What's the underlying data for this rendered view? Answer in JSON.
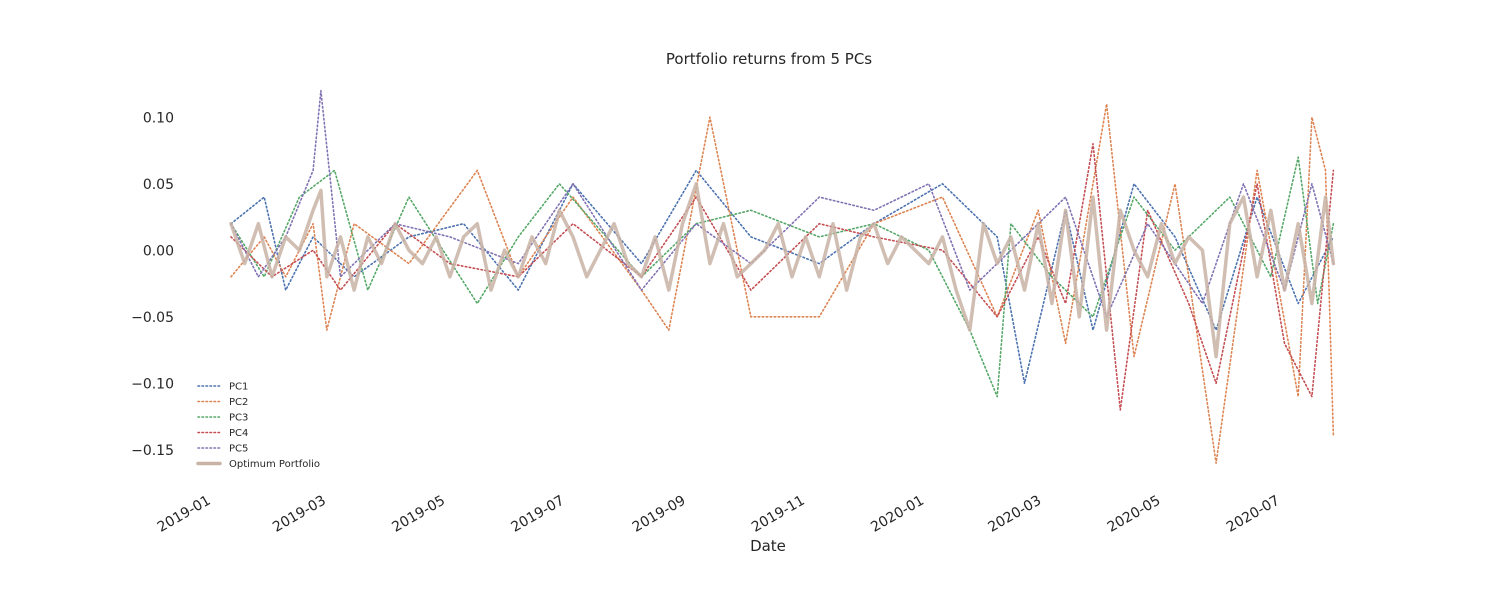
{
  "chart_data": {
    "type": "line",
    "title": "Portfolio returns from 5 PCs",
    "xlabel": "Date",
    "ylabel": "",
    "xlim": [
      "2018-12-20",
      "2020-08-05"
    ],
    "ylim": [
      -0.175,
      0.125
    ],
    "x_ticks": [
      "2019-01-01",
      "2019-03-01",
      "2019-05-01",
      "2019-07-01",
      "2019-09-01",
      "2019-11-01",
      "2020-01-01",
      "2020-03-01",
      "2020-05-01",
      "2020-07-01"
    ],
    "x_tick_labels": [
      "2019-01",
      "2019-03",
      "2019-05",
      "2019-07",
      "2019-09",
      "2019-11",
      "2020-01",
      "2020-03",
      "2020-05",
      "2020-07"
    ],
    "y_ticks": [
      0.1,
      0.05,
      0.0,
      -0.05,
      -0.1,
      -0.15
    ],
    "y_tick_labels": [
      "0.10",
      "0.05",
      "0.00",
      "−0.05",
      "−0.10",
      "−0.15"
    ],
    "grid": false,
    "legend_position": "bottom-left",
    "series": [
      {
        "name": "PC1",
        "color": "#4c72b0",
        "style": "dotted",
        "x": [
          "2019-01-11",
          "2019-01-28",
          "2019-02-08",
          "2019-02-22",
          "2019-03-15",
          "2019-04-12",
          "2019-05-10",
          "2019-06-07",
          "2019-07-05",
          "2019-08-09",
          "2019-09-06",
          "2019-10-04",
          "2019-11-08",
          "2019-12-06",
          "2020-01-10",
          "2020-02-07",
          "2020-02-21",
          "2020-03-13",
          "2020-03-27",
          "2020-04-17",
          "2020-05-08",
          "2020-05-29",
          "2020-06-19",
          "2020-07-10",
          "2020-07-28"
        ],
        "y": [
          0.02,
          0.04,
          -0.03,
          0.01,
          -0.02,
          0.01,
          0.02,
          -0.03,
          0.05,
          -0.01,
          0.06,
          0.01,
          -0.01,
          0.02,
          0.05,
          0.01,
          -0.1,
          0.03,
          -0.06,
          0.05,
          0.01,
          -0.06,
          0.04,
          -0.04,
          0.01
        ]
      },
      {
        "name": "PC2",
        "color": "#dd8452",
        "style": "dotted",
        "x": [
          "2019-01-11",
          "2019-01-28",
          "2019-02-08",
          "2019-02-22",
          "2019-03-01",
          "2019-03-15",
          "2019-04-12",
          "2019-05-17",
          "2019-06-07",
          "2019-07-05",
          "2019-08-09",
          "2019-08-23",
          "2019-09-13",
          "2019-10-04",
          "2019-11-08",
          "2019-12-06",
          "2020-01-10",
          "2020-02-07",
          "2020-02-28",
          "2020-03-13",
          "2020-03-27",
          "2020-04-03",
          "2020-04-17",
          "2020-05-08",
          "2020-05-29",
          "2020-06-19",
          "2020-07-10",
          "2020-07-17",
          "2020-07-24",
          "2020-07-28"
        ],
        "y": [
          -0.02,
          0.01,
          -0.02,
          0.02,
          -0.06,
          0.02,
          -0.01,
          0.06,
          -0.02,
          0.04,
          -0.03,
          -0.06,
          0.1,
          -0.05,
          -0.05,
          0.02,
          0.04,
          -0.05,
          0.03,
          -0.07,
          0.05,
          0.11,
          -0.08,
          0.05,
          -0.16,
          0.06,
          -0.11,
          0.1,
          0.06,
          -0.14
        ]
      },
      {
        "name": "PC3",
        "color": "#55a868",
        "style": "dotted",
        "x": [
          "2019-01-11",
          "2019-01-28",
          "2019-02-15",
          "2019-03-05",
          "2019-03-22",
          "2019-04-12",
          "2019-05-17",
          "2019-06-07",
          "2019-06-28",
          "2019-08-09",
          "2019-09-06",
          "2019-10-04",
          "2019-11-08",
          "2019-12-06",
          "2020-01-03",
          "2020-01-24",
          "2020-02-07",
          "2020-02-14",
          "2020-03-06",
          "2020-03-27",
          "2020-04-17",
          "2020-05-08",
          "2020-06-05",
          "2020-06-26",
          "2020-07-10",
          "2020-07-20",
          "2020-07-28"
        ],
        "y": [
          0.02,
          -0.02,
          0.04,
          0.06,
          -0.03,
          0.04,
          -0.04,
          0.01,
          0.05,
          -0.02,
          0.02,
          0.03,
          0.01,
          0.02,
          0.0,
          -0.06,
          -0.11,
          0.02,
          -0.02,
          -0.05,
          0.04,
          0.0,
          0.04,
          -0.02,
          0.07,
          -0.04,
          0.02
        ]
      },
      {
        "name": "PC4",
        "color": "#c44e52",
        "style": "dotted",
        "x": [
          "2019-01-11",
          "2019-02-01",
          "2019-02-22",
          "2019-03-08",
          "2019-04-05",
          "2019-05-03",
          "2019-06-07",
          "2019-07-05",
          "2019-08-09",
          "2019-09-06",
          "2019-10-04",
          "2019-11-08",
          "2019-12-06",
          "2020-01-10",
          "2020-02-07",
          "2020-02-28",
          "2020-03-13",
          "2020-03-27",
          "2020-04-10",
          "2020-04-24",
          "2020-05-15",
          "2020-05-29",
          "2020-06-19",
          "2020-07-03",
          "2020-07-17",
          "2020-07-28"
        ],
        "y": [
          0.01,
          -0.02,
          0.0,
          -0.03,
          0.02,
          -0.01,
          -0.02,
          0.02,
          -0.02,
          0.04,
          -0.03,
          0.02,
          0.01,
          0.0,
          -0.05,
          0.01,
          -0.04,
          0.08,
          -0.12,
          0.03,
          -0.04,
          -0.1,
          0.05,
          -0.07,
          -0.11,
          0.06
        ]
      },
      {
        "name": "PC5",
        "color": "#8172b3",
        "style": "dotted",
        "x": [
          "2019-01-11",
          "2019-01-25",
          "2019-02-08",
          "2019-02-22",
          "2019-02-26",
          "2019-03-08",
          "2019-04-05",
          "2019-05-03",
          "2019-06-07",
          "2019-07-05",
          "2019-08-09",
          "2019-09-06",
          "2019-10-04",
          "2019-11-08",
          "2019-12-06",
          "2020-01-03",
          "2020-01-24",
          "2020-02-14",
          "2020-03-13",
          "2020-04-03",
          "2020-04-24",
          "2020-05-22",
          "2020-06-12",
          "2020-07-03",
          "2020-07-17",
          "2020-07-28"
        ],
        "y": [
          0.02,
          -0.02,
          0.01,
          0.06,
          0.12,
          -0.02,
          0.02,
          0.01,
          -0.01,
          0.05,
          -0.03,
          0.02,
          -0.01,
          0.04,
          0.03,
          0.05,
          -0.03,
          0.0,
          0.04,
          -0.05,
          0.02,
          -0.04,
          0.05,
          -0.03,
          0.05,
          -0.01
        ]
      },
      {
        "name": "Optimum Portfolio",
        "color": "#c9b3a6",
        "style": "solid",
        "x": [
          "2019-01-11",
          "2019-01-18",
          "2019-01-25",
          "2019-02-01",
          "2019-02-08",
          "2019-02-15",
          "2019-02-22",
          "2019-02-26",
          "2019-03-01",
          "2019-03-08",
          "2019-03-15",
          "2019-03-22",
          "2019-03-29",
          "2019-04-05",
          "2019-04-12",
          "2019-04-19",
          "2019-04-26",
          "2019-05-03",
          "2019-05-10",
          "2019-05-17",
          "2019-05-24",
          "2019-05-31",
          "2019-06-07",
          "2019-06-14",
          "2019-06-21",
          "2019-06-28",
          "2019-07-05",
          "2019-07-12",
          "2019-07-19",
          "2019-07-26",
          "2019-08-02",
          "2019-08-09",
          "2019-08-16",
          "2019-08-23",
          "2019-08-30",
          "2019-09-06",
          "2019-09-13",
          "2019-09-20",
          "2019-09-27",
          "2019-10-04",
          "2019-10-11",
          "2019-10-18",
          "2019-10-25",
          "2019-11-01",
          "2019-11-08",
          "2019-11-15",
          "2019-11-22",
          "2019-11-29",
          "2019-12-06",
          "2019-12-13",
          "2019-12-20",
          "2019-12-27",
          "2020-01-03",
          "2020-01-10",
          "2020-01-17",
          "2020-01-24",
          "2020-01-31",
          "2020-02-07",
          "2020-02-14",
          "2020-02-21",
          "2020-02-28",
          "2020-03-06",
          "2020-03-13",
          "2020-03-20",
          "2020-03-27",
          "2020-04-03",
          "2020-04-10",
          "2020-04-17",
          "2020-04-24",
          "2020-05-01",
          "2020-05-08",
          "2020-05-15",
          "2020-05-22",
          "2020-05-29",
          "2020-06-05",
          "2020-06-12",
          "2020-06-19",
          "2020-06-26",
          "2020-07-03",
          "2020-07-10",
          "2020-07-17",
          "2020-07-24",
          "2020-07-28"
        ],
        "y": [
          0.02,
          -0.01,
          0.02,
          -0.02,
          0.01,
          0.0,
          0.03,
          0.045,
          -0.02,
          0.01,
          -0.03,
          0.01,
          -0.01,
          0.02,
          0.0,
          -0.01,
          0.01,
          -0.02,
          0.01,
          0.02,
          -0.03,
          0.0,
          -0.02,
          0.01,
          -0.01,
          0.03,
          0.01,
          -0.02,
          0.0,
          0.02,
          -0.01,
          -0.02,
          0.01,
          -0.03,
          0.02,
          0.05,
          -0.01,
          0.02,
          -0.02,
          -0.01,
          0.0,
          0.02,
          -0.02,
          0.01,
          -0.02,
          0.02,
          -0.03,
          0.01,
          0.02,
          -0.01,
          0.01,
          0.0,
          -0.01,
          0.01,
          -0.03,
          -0.06,
          0.02,
          -0.01,
          0.01,
          -0.03,
          0.02,
          -0.04,
          0.03,
          -0.05,
          0.04,
          -0.06,
          0.03,
          0.0,
          -0.02,
          0.02,
          -0.01,
          0.01,
          0.0,
          -0.08,
          0.02,
          0.04,
          -0.02,
          0.03,
          -0.03,
          0.02,
          -0.04,
          0.04,
          -0.01
        ]
      }
    ]
  }
}
